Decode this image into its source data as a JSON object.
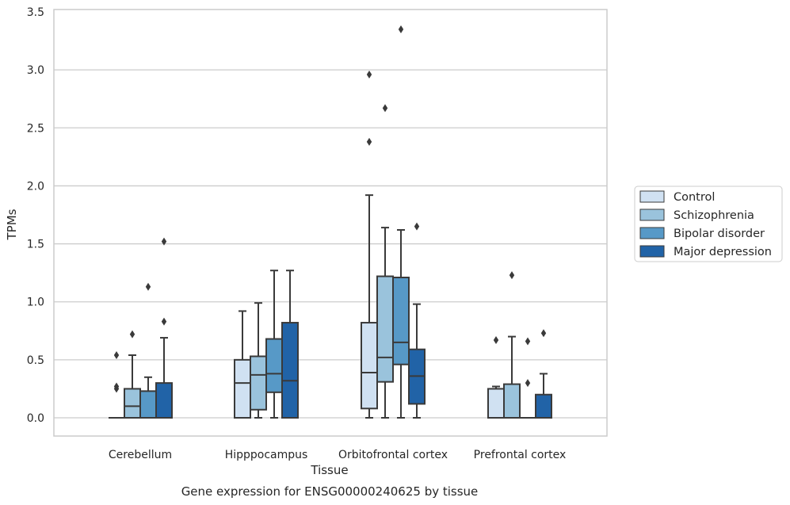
{
  "colors": {
    "Control": "#d0e1f2",
    "Schizophrenia": "#9ac3dc",
    "Bipolar disorder": "#5799c7",
    "Major depression": "#2163a7",
    "edge": "#3a3a3a",
    "grid": "#cccccc",
    "frame": "#cccccc"
  },
  "chart_data": {
    "type": "boxplot",
    "title": "",
    "caption": "Gene expression for ENSG00000240625 by tissue",
    "xlabel": "Tissue",
    "ylabel": "TPMs",
    "ylim": [
      -0.16,
      3.53
    ],
    "yticks": [
      "0.0",
      "0.5",
      "1.0",
      "1.5",
      "2.0",
      "2.5",
      "3.0",
      "3.5"
    ],
    "grid": true,
    "legend_position": "right",
    "categories": [
      "Cerebellum",
      "Hipppocampus",
      "Orbitofrontal cortex",
      "Prefrontal cortex"
    ],
    "series": [
      {
        "name": "Control",
        "boxes": [
          {
            "whislo": 0,
            "q1": 0,
            "med": 0,
            "q3": 0,
            "whishi": 0,
            "fliers": [
              0.54,
              0.27,
              0.25
            ]
          },
          {
            "whislo": 0,
            "q1": 0,
            "med": 0.3,
            "q3": 0.5,
            "whishi": 0.92,
            "fliers": []
          },
          {
            "whislo": 0,
            "q1": 0.08,
            "med": 0.39,
            "q3": 0.82,
            "whishi": 1.92,
            "fliers": [
              2.96,
              2.38
            ]
          },
          {
            "whislo": 0,
            "q1": 0,
            "med": 0,
            "q3": 0.25,
            "whishi": 0.27,
            "fliers": [
              0.67
            ]
          }
        ]
      },
      {
        "name": "Schizophrenia",
        "boxes": [
          {
            "whislo": 0,
            "q1": 0,
            "med": 0.1,
            "q3": 0.25,
            "whishi": 0.54,
            "fliers": [
              0.72
            ]
          },
          {
            "whislo": 0,
            "q1": 0.07,
            "med": 0.37,
            "q3": 0.53,
            "whishi": 0.99,
            "fliers": []
          },
          {
            "whislo": 0,
            "q1": 0.31,
            "med": 0.52,
            "q3": 1.22,
            "whishi": 1.64,
            "fliers": [
              2.67
            ]
          },
          {
            "whislo": 0,
            "q1": 0,
            "med": 0,
            "q3": 0.29,
            "whishi": 0.7,
            "fliers": [
              1.23
            ]
          }
        ]
      },
      {
        "name": "Bipolar disorder",
        "boxes": [
          {
            "whislo": 0,
            "q1": 0,
            "med": 0,
            "q3": 0.23,
            "whishi": 0.35,
            "fliers": [
              1.13
            ]
          },
          {
            "whislo": 0,
            "q1": 0.22,
            "med": 0.38,
            "q3": 0.68,
            "whishi": 1.27,
            "fliers": []
          },
          {
            "whislo": 0,
            "q1": 0.46,
            "med": 0.65,
            "q3": 1.21,
            "whishi": 1.62,
            "fliers": [
              3.35
            ]
          },
          {
            "whislo": 0,
            "q1": 0,
            "med": 0,
            "q3": 0,
            "whishi": 0,
            "fliers": [
              0.66,
              0.3
            ]
          }
        ]
      },
      {
        "name": "Major depression",
        "boxes": [
          {
            "whislo": 0,
            "q1": 0,
            "med": 0,
            "q3": 0.3,
            "whishi": 0.69,
            "fliers": [
              1.52,
              0.83
            ]
          },
          {
            "whislo": 0,
            "q1": 0,
            "med": 0.32,
            "q3": 0.82,
            "whishi": 1.27,
            "fliers": []
          },
          {
            "whislo": 0,
            "q1": 0.12,
            "med": 0.36,
            "q3": 0.59,
            "whishi": 0.98,
            "fliers": [
              1.65
            ]
          },
          {
            "whislo": 0,
            "q1": 0,
            "med": 0,
            "q3": 0.2,
            "whishi": 0.38,
            "fliers": [
              0.73
            ]
          }
        ]
      }
    ]
  }
}
